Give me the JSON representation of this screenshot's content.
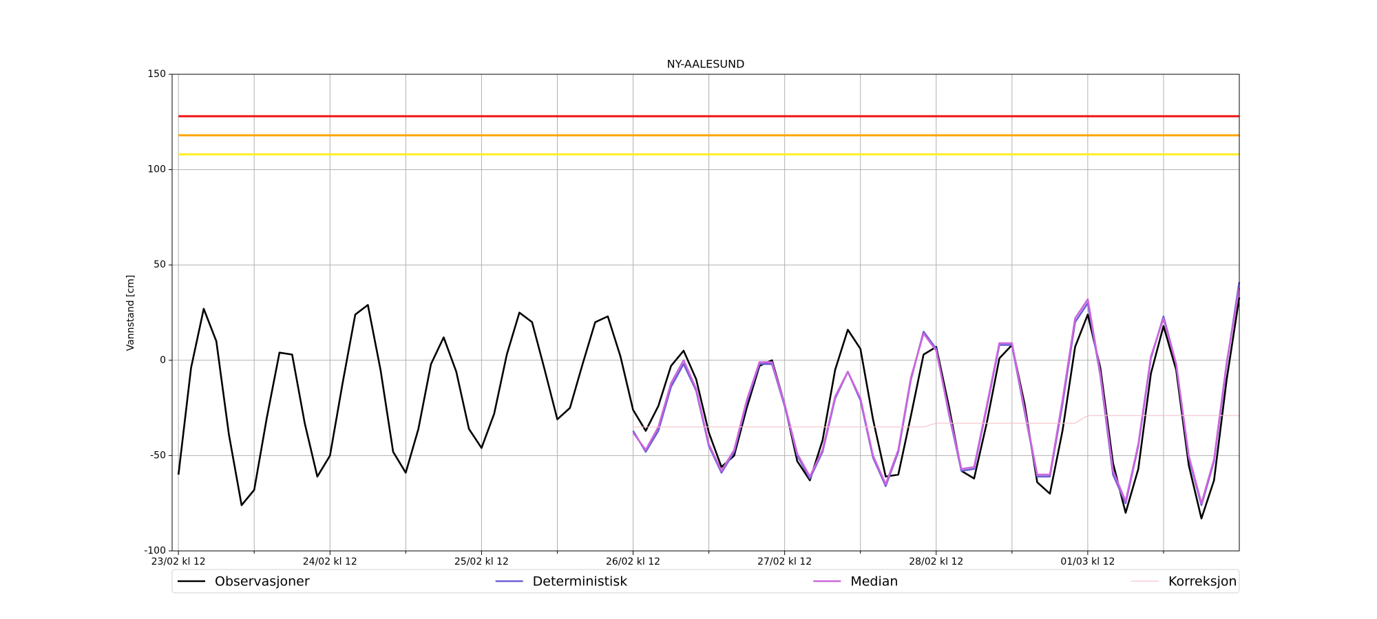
{
  "chart_data": {
    "type": "line",
    "title": "NY-AALESUND",
    "y_label": "Vannstand [cm]",
    "x": [
      "23/02 kl 12",
      "23/02 kl 14",
      "23/02 kl 16",
      "23/02 kl 18",
      "23/02 kl 20",
      "23/02 kl 22",
      "24/02 kl 00",
      "24/02 kl 02",
      "24/02 kl 04",
      "24/02 kl 06",
      "24/02 kl 08",
      "24/02 kl 10",
      "24/02 kl 12",
      "24/02 kl 14",
      "24/02 kl 16",
      "24/02 kl 18",
      "24/02 kl 20",
      "24/02 kl 22",
      "25/02 kl 00",
      "25/02 kl 02",
      "25/02 kl 04",
      "25/02 kl 06",
      "25/02 kl 08",
      "25/02 kl 10",
      "25/02 kl 12",
      "25/02 kl 14",
      "25/02 kl 16",
      "25/02 kl 18",
      "25/02 kl 20",
      "25/02 kl 22",
      "26/02 kl 00",
      "26/02 kl 02",
      "26/02 kl 04",
      "26/02 kl 06",
      "26/02 kl 08",
      "26/02 kl 10",
      "26/02 kl 12",
      "26/02 kl 14",
      "26/02 kl 16",
      "26/02 kl 18",
      "26/02 kl 20",
      "26/02 kl 22",
      "27/02 kl 00",
      "27/02 kl 02",
      "27/02 kl 04",
      "27/02 kl 06",
      "27/02 kl 08",
      "27/02 kl 10",
      "27/02 kl 12",
      "27/02 kl 14",
      "27/02 kl 16",
      "27/02 kl 18",
      "27/02 kl 20",
      "27/02 kl 22",
      "28/02 kl 00",
      "28/02 kl 02",
      "28/02 kl 04",
      "28/02 kl 06",
      "28/02 kl 08",
      "28/02 kl 10",
      "28/02 kl 12",
      "28/02 kl 14",
      "28/02 kl 16",
      "28/02 kl 18",
      "28/02 kl 20",
      "28/02 kl 22",
      "01/03 kl 00",
      "01/03 kl 02",
      "01/03 kl 04",
      "01/03 kl 06",
      "01/03 kl 08",
      "01/03 kl 10",
      "01/03 kl 12",
      "01/03 kl 14",
      "01/03 kl 16",
      "01/03 kl 18",
      "01/03 kl 20",
      "01/03 kl 22",
      "02/03 kl 00",
      "02/03 kl 02",
      "02/03 kl 04",
      "02/03 kl 06",
      "02/03 kl 08",
      "02/03 kl 10",
      "02/03 kl 12"
    ],
    "series": [
      {
        "name": "Observasjoner",
        "color": "#000000",
        "values": [
          -60,
          -4,
          27,
          10,
          -39,
          -76,
          -68,
          -30,
          4,
          3,
          -33,
          -61,
          -50,
          -12,
          24,
          29,
          -5,
          -48,
          -59,
          -36,
          -2,
          12,
          -6,
          -36,
          -46,
          -28,
          3,
          25,
          20,
          -5,
          -31,
          -25,
          -2,
          20,
          23,
          2,
          -26,
          -37,
          -24,
          -3,
          5,
          -10,
          -38,
          -56,
          -50,
          -25,
          -3,
          0,
          -23,
          -53,
          -63,
          -42,
          -5,
          16,
          6,
          -31,
          -61,
          -60,
          -29,
          3,
          7,
          -24,
          -58,
          -62,
          -33,
          1,
          8,
          -23,
          -64,
          -70,
          -37,
          7,
          24,
          -4,
          -54,
          -80,
          -57,
          -7,
          18,
          -5,
          -55,
          -83,
          -63,
          -10,
          33
        ]
      },
      {
        "name": "Deterministisk",
        "color": "#6a5fd6",
        "values": [
          null,
          null,
          null,
          null,
          null,
          null,
          null,
          null,
          null,
          null,
          null,
          null,
          null,
          null,
          null,
          null,
          null,
          null,
          null,
          null,
          null,
          null,
          null,
          null,
          null,
          null,
          null,
          null,
          null,
          null,
          null,
          null,
          null,
          null,
          null,
          null,
          -37,
          -48,
          -37,
          -14,
          -2,
          -16,
          -45,
          -59,
          -48,
          -22,
          -2,
          -2,
          -24,
          -50,
          -62,
          -48,
          -20,
          -6,
          -21,
          -51,
          -66,
          -48,
          -10,
          15,
          6,
          -28,
          -58,
          -57,
          -25,
          8,
          8,
          -27,
          -61,
          -61,
          -23,
          20,
          30,
          -8,
          -60,
          -75,
          -45,
          1,
          23,
          -2,
          -51,
          -76,
          -53,
          -2,
          41
        ]
      },
      {
        "name": "Median",
        "color": "#cc66dd",
        "values": [
          null,
          null,
          null,
          null,
          null,
          null,
          null,
          null,
          null,
          null,
          null,
          null,
          null,
          null,
          null,
          null,
          null,
          null,
          null,
          null,
          null,
          null,
          null,
          null,
          null,
          null,
          null,
          null,
          null,
          null,
          null,
          null,
          null,
          null,
          null,
          null,
          -38,
          -47,
          -35,
          -12,
          0,
          -15,
          -44,
          -58,
          -47,
          -21,
          -1,
          -1,
          -23,
          -49,
          -61,
          -47,
          -19,
          -6,
          -20,
          -50,
          -65,
          -47,
          -9,
          14,
          5,
          -27,
          -57,
          -56,
          -24,
          9,
          9,
          -26,
          -60,
          -60,
          -21,
          22,
          32,
          -7,
          -58,
          -74,
          -44,
          2,
          22,
          -2,
          -50,
          -75,
          -52,
          -1,
          38
        ]
      },
      {
        "name": "Korreksjon",
        "color": "#f4c4cc",
        "values": [
          null,
          null,
          null,
          null,
          null,
          null,
          null,
          null,
          null,
          null,
          null,
          null,
          null,
          null,
          null,
          null,
          null,
          null,
          null,
          null,
          null,
          null,
          null,
          null,
          null,
          null,
          null,
          null,
          null,
          null,
          null,
          null,
          null,
          null,
          null,
          null,
          -35,
          -35,
          -35,
          -35,
          -35,
          -35,
          -35,
          -35,
          -35,
          -35,
          -35,
          -35,
          -35,
          -35,
          -35,
          -35,
          -35,
          -35,
          -35,
          -35,
          -35,
          -35,
          -35,
          -35,
          -33,
          -33,
          -33,
          -33,
          -33,
          -33,
          -33,
          -33,
          -33,
          -33,
          -33,
          -33,
          -29,
          -29,
          -29,
          -29,
          -29,
          -29,
          -29,
          -29,
          -29,
          -29,
          -29,
          -29,
          -29
        ]
      }
    ],
    "thresholds": [
      {
        "value": 128,
        "color": "#ee1111"
      },
      {
        "value": 118,
        "color": "#ffa500"
      },
      {
        "value": 108,
        "color": "#ffee22"
      }
    ],
    "xlim": [
      "23/02 kl 11",
      "02/03 kl 12"
    ],
    "xticks": [
      "23/02 kl 12",
      "24/02 kl 12",
      "25/02 kl 12",
      "26/02 kl 12",
      "27/02 kl 12",
      "28/02 kl 12",
      "01/03 kl 12"
    ],
    "xticks_minor": [
      "24/02 kl 00",
      "25/02 kl 00",
      "26/02 kl 00",
      "27/02 kl 00",
      "28/02 kl 00",
      "01/03 kl 00",
      "02/03 kl 00"
    ],
    "ylim": [
      -100,
      150
    ],
    "yticks": [
      -100,
      -50,
      0,
      50,
      100,
      150
    ],
    "grid": true,
    "legend": "bottom"
  }
}
